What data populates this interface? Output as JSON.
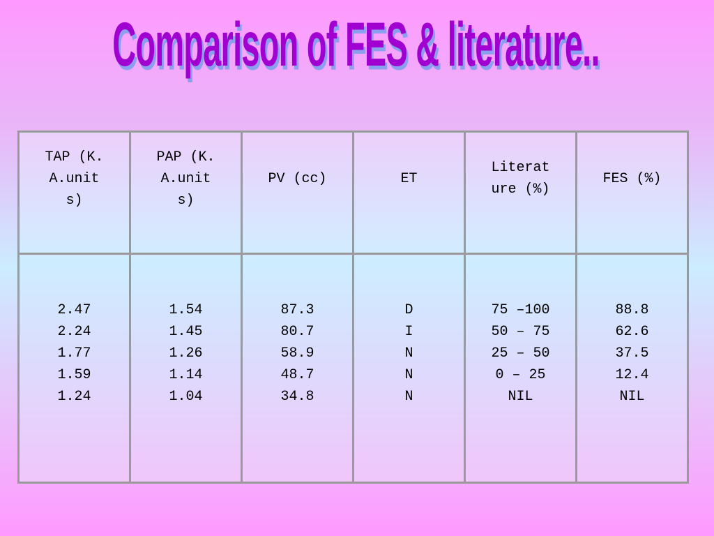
{
  "title": "Comparison of FES & literature..",
  "table": {
    "header": [
      "TAP (K.A.units)",
      "PAP (K.A.units)",
      "PV (cc)",
      "ET",
      "Literature (%)",
      "FES (%)"
    ],
    "body": [
      [
        "2.47",
        "2.24",
        "1.77",
        "1.59",
        "1.24"
      ],
      [
        "1.54",
        "1.45",
        "1.26",
        "1.14",
        "1.04"
      ],
      [
        "87.3",
        "80.7",
        "58.9",
        "48.7",
        "34.8"
      ],
      [
        "D",
        "I",
        "N",
        "N",
        "N"
      ],
      [
        "75 –100",
        "50 – 75",
        "25 – 50",
        "0 – 25",
        "NIL"
      ],
      [
        "88.8",
        "62.6",
        "37.5",
        "12.4",
        "NIL"
      ]
    ]
  }
}
